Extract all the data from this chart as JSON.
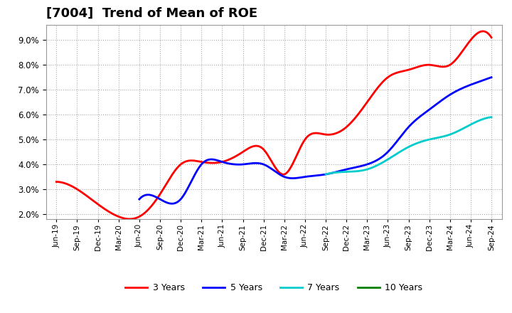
{
  "title": "[7004]  Trend of Mean of ROE",
  "title_fontsize": 13,
  "background_color": "#ffffff",
  "plot_bg_color": "#ffffff",
  "grid_color": "#aaaaaa",
  "ylim": [
    0.018,
    0.096
  ],
  "yticks": [
    0.02,
    0.03,
    0.04,
    0.05,
    0.06,
    0.07,
    0.08,
    0.09
  ],
  "legend_labels": [
    "3 Years",
    "5 Years",
    "7 Years",
    "10 Years"
  ],
  "legend_colors": [
    "#ff0000",
    "#0000ff",
    "#00cccc",
    "#008000"
  ],
  "x_labels": [
    "Jun-19",
    "Sep-19",
    "Dec-19",
    "Mar-20",
    "Jun-20",
    "Sep-20",
    "Dec-20",
    "Mar-21",
    "Jun-21",
    "Sep-21",
    "Dec-21",
    "Mar-22",
    "Jun-22",
    "Sep-22",
    "Dec-22",
    "Mar-23",
    "Jun-23",
    "Sep-23",
    "Dec-23",
    "Mar-24",
    "Jun-24",
    "Sep-24"
  ],
  "series_3y_x": [
    0,
    1,
    2,
    3,
    4,
    5,
    6,
    7,
    8,
    9,
    10,
    11,
    12,
    13,
    14,
    15,
    16,
    17,
    18,
    19,
    20,
    21
  ],
  "series_3y_y": [
    0.033,
    0.03,
    0.024,
    0.019,
    0.019,
    0.028,
    0.04,
    0.041,
    0.041,
    0.045,
    0.046,
    0.036,
    0.05,
    0.052,
    0.055,
    0.065,
    0.075,
    0.078,
    0.08,
    0.08,
    0.09,
    0.091
  ],
  "series_5y_x": [
    4,
    5,
    6,
    7,
    8,
    9,
    10,
    11,
    12,
    13,
    14,
    15,
    16,
    17,
    18,
    19,
    20,
    21
  ],
  "series_5y_y": [
    0.026,
    0.026,
    0.026,
    0.04,
    0.041,
    0.04,
    0.04,
    0.035,
    0.035,
    0.036,
    0.038,
    0.04,
    0.045,
    0.055,
    0.062,
    0.068,
    0.072,
    0.075
  ],
  "series_7y_x": [
    13,
    14,
    15,
    16,
    17,
    18,
    19,
    20,
    21
  ],
  "series_7y_y": [
    0.036,
    0.037,
    0.038,
    0.042,
    0.047,
    0.05,
    0.052,
    0.056,
    0.059
  ],
  "series_10y_x": [],
  "series_10y_y": []
}
